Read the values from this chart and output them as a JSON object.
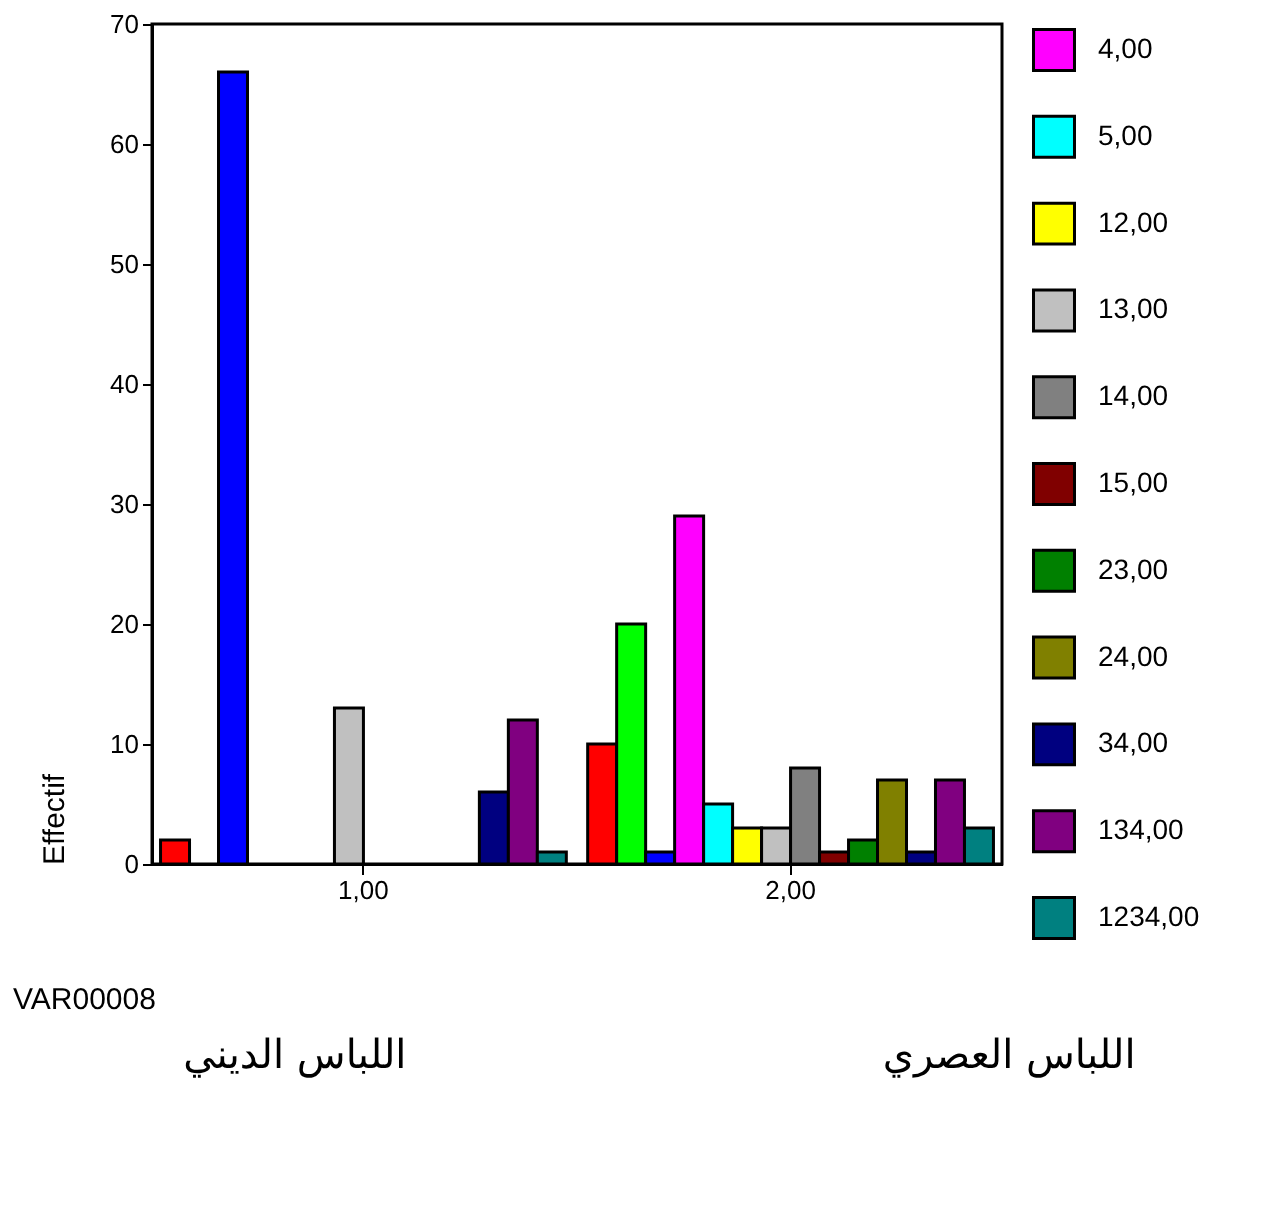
{
  "chart_data": {
    "type": "bar",
    "categories": [
      "1,00",
      "2,00"
    ],
    "xlabel": "VAR00008",
    "ylabel": "Effectif",
    "ylim": [
      0,
      70
    ],
    "yticks": [
      0,
      10,
      20,
      30,
      40,
      50,
      60,
      70
    ],
    "grid": false,
    "legend": "right",
    "series": [
      {
        "color": "#ff0000",
        "values": [
          2,
          10
        ]
      },
      {
        "color": "#00ff00",
        "values": [
          null,
          20
        ]
      },
      {
        "color": "#0000ff",
        "values": [
          66,
          1
        ]
      },
      {
        "name": "4,00",
        "color": "#ff00ff",
        "values": [
          null,
          29
        ]
      },
      {
        "name": "5,00",
        "color": "#00ffff",
        "values": [
          null,
          5
        ]
      },
      {
        "name": "12,00",
        "color": "#ffff00",
        "values": [
          null,
          3
        ]
      },
      {
        "name": "13,00",
        "color": "#c0c0c0",
        "values": [
          13,
          3
        ]
      },
      {
        "name": "14,00",
        "color": "#808080",
        "values": [
          null,
          8
        ]
      },
      {
        "name": "15,00",
        "color": "#800000",
        "values": [
          null,
          1
        ]
      },
      {
        "name": "23,00",
        "color": "#008000",
        "values": [
          null,
          2
        ]
      },
      {
        "name": "24,00",
        "color": "#808000",
        "values": [
          null,
          7
        ]
      },
      {
        "name": "34,00",
        "color": "#000080",
        "values": [
          6,
          1
        ]
      },
      {
        "name": "134,00",
        "color": "#800080",
        "values": [
          12,
          7
        ]
      },
      {
        "name": "1234,00",
        "color": "#008080",
        "values": [
          1,
          3
        ]
      }
    ],
    "annotations": [
      "اللباس الديني",
      "اللباس العصري"
    ]
  }
}
